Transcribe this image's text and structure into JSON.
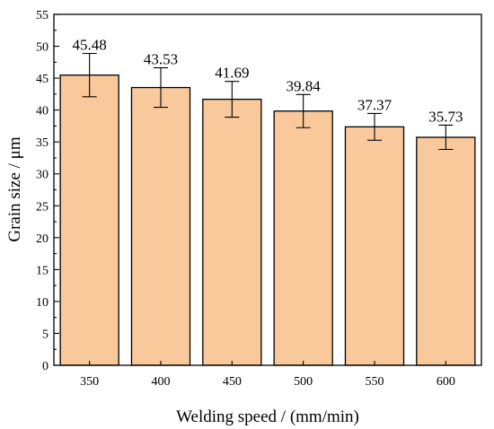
{
  "chart_data": {
    "type": "bar",
    "title": "",
    "xlabel": "Welding speed / (mm/min)",
    "ylabel": "Grain size / μm",
    "categories": [
      "350",
      "400",
      "450",
      "500",
      "550",
      "600"
    ],
    "values": [
      45.48,
      43.53,
      41.69,
      39.84,
      37.37,
      35.73
    ],
    "value_labels": [
      "45.48",
      "43.53",
      "41.69",
      "39.84",
      "37.37",
      "35.73"
    ],
    "error": [
      3.4,
      3.1,
      2.8,
      2.6,
      2.1,
      1.9
    ],
    "ylim": [
      0,
      55
    ],
    "yticks": [
      "0",
      "5",
      "10",
      "15",
      "20",
      "25",
      "30",
      "35",
      "40",
      "45",
      "50",
      "55"
    ],
    "grid": false,
    "legend": "none",
    "bar_color": "#F9C89B",
    "edge_color": "#000000"
  }
}
